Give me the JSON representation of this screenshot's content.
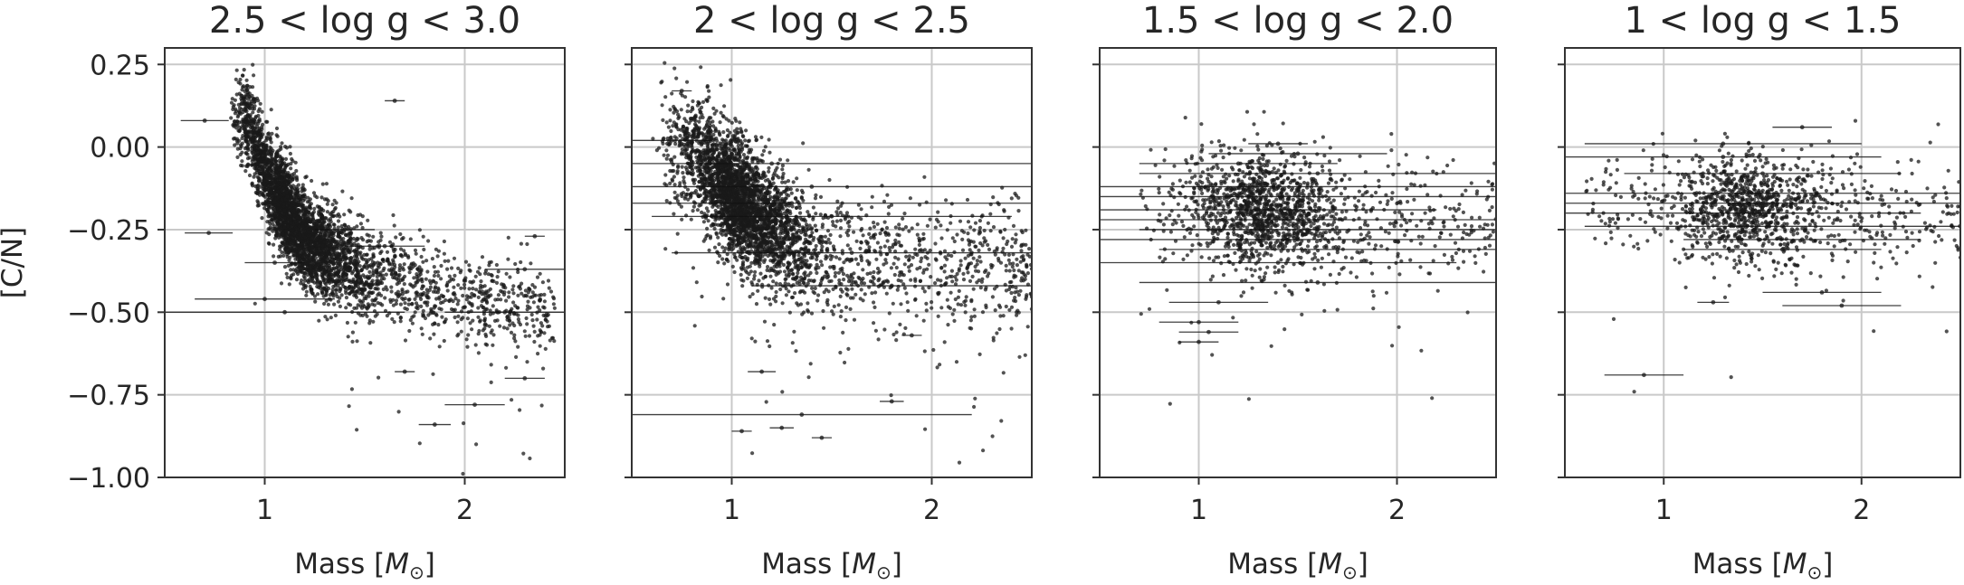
{
  "chart_data": [
    {
      "type": "scatter",
      "title": "2.5 < log g < 3.0",
      "xlabel_text": "Mass [",
      "xlabel_symbol": "M",
      "xlabel_sub": "⊙",
      "xlabel_close": "]",
      "ylabel": "[C/N]",
      "xlim": [
        0.5,
        2.5
      ],
      "ylim": [
        -1.0,
        0.3
      ],
      "xticks": [
        1,
        2
      ],
      "xtick_labels": [
        "1",
        "2"
      ],
      "yticks": [
        0.25,
        0.0,
        -0.25,
        -0.5,
        -0.75,
        -1.0
      ],
      "ytick_labels": [
        "0.25",
        "0.00",
        "−0.25",
        "−0.50",
        "−0.75",
        "−1.00"
      ],
      "show_ytick_labels": true,
      "grid": true,
      "density": {
        "model": "curve",
        "mass_min": 0.88,
        "mass_mode": 1.05,
        "mass_max": 2.45,
        "cn_at": [
          [
            0.9,
            0.1
          ],
          [
            1.0,
            -0.08
          ],
          [
            1.2,
            -0.28
          ],
          [
            1.5,
            -0.38
          ],
          [
            2.0,
            -0.46
          ],
          [
            2.5,
            -0.52
          ]
        ],
        "scatter": 0.07,
        "count": 3800,
        "seed": 11
      },
      "error_bars": [
        {
          "x": 1.65,
          "y": 0.14,
          "xerr": 0.05
        },
        {
          "x": 0.7,
          "y": 0.08,
          "xerr": 0.12
        },
        {
          "x": 0.72,
          "y": -0.26,
          "xerr": 0.12
        },
        {
          "x": 1.05,
          "y": -0.35,
          "xerr": 0.15
        },
        {
          "x": 1.0,
          "y": -0.46,
          "xerr": 0.35
        },
        {
          "x": 1.1,
          "y": -0.5,
          "xerr": 0.6
        },
        {
          "x": 2.2,
          "y": -0.5,
          "xerr": 0.3
        },
        {
          "x": 2.3,
          "y": -0.37,
          "xerr": 0.2
        },
        {
          "x": 1.7,
          "y": -0.68,
          "xerr": 0.05
        },
        {
          "x": 2.05,
          "y": -0.78,
          "xerr": 0.15
        },
        {
          "x": 1.85,
          "y": -0.84,
          "xerr": 0.08
        },
        {
          "x": 1.4,
          "y": -0.25,
          "xerr": 0.15
        },
        {
          "x": 1.6,
          "y": -0.3,
          "xerr": 0.2
        },
        {
          "x": 2.35,
          "y": -0.27,
          "xerr": 0.05
        },
        {
          "x": 2.3,
          "y": -0.7,
          "xerr": 0.1
        }
      ]
    },
    {
      "type": "scatter",
      "title": "2 < log g < 2.5",
      "xlabel_text": "Mass [",
      "xlabel_symbol": "M",
      "xlabel_sub": "⊙",
      "xlabel_close": "]",
      "xlim": [
        0.5,
        2.5
      ],
      "ylim": [
        -1.0,
        0.3
      ],
      "xticks": [
        1,
        2
      ],
      "xtick_labels": [
        "1",
        "2"
      ],
      "yticks": [
        0.25,
        0.0,
        -0.25,
        -0.5,
        -0.75,
        -1.0
      ],
      "show_ytick_labels": false,
      "grid": true,
      "density": {
        "model": "curve",
        "mass_min": 0.65,
        "mass_mode": 0.95,
        "mass_max": 2.5,
        "cn_at": [
          [
            0.7,
            0.02
          ],
          [
            0.9,
            -0.08
          ],
          [
            1.1,
            -0.2
          ],
          [
            1.4,
            -0.32
          ],
          [
            2.0,
            -0.35
          ],
          [
            2.5,
            -0.36
          ]
        ],
        "scatter": 0.09,
        "count": 3600,
        "seed": 23,
        "outliers": 140
      },
      "error_bars": [
        {
          "x": 0.75,
          "y": 0.17,
          "xerr": 0.05
        },
        {
          "x": 0.7,
          "y": 0.02,
          "xerr": 0.2
        },
        {
          "x": 1.2,
          "y": -0.05,
          "xerr": 1.3
        },
        {
          "x": 1.4,
          "y": -0.12,
          "xerr": 1.2
        },
        {
          "x": 1.3,
          "y": -0.17,
          "xerr": 1.3
        },
        {
          "x": 1.5,
          "y": -0.21,
          "xerr": 0.9
        },
        {
          "x": 1.6,
          "y": -0.32,
          "xerr": 0.9
        },
        {
          "x": 1.8,
          "y": -0.42,
          "xerr": 0.7
        },
        {
          "x": 1.35,
          "y": -0.81,
          "xerr": 0.85
        },
        {
          "x": 1.15,
          "y": -0.68,
          "xerr": 0.07
        },
        {
          "x": 1.25,
          "y": -0.85,
          "xerr": 0.06
        },
        {
          "x": 1.05,
          "y": -0.86,
          "xerr": 0.05
        },
        {
          "x": 1.8,
          "y": -0.77,
          "xerr": 0.06
        },
        {
          "x": 1.45,
          "y": -0.88,
          "xerr": 0.05
        },
        {
          "x": 1.9,
          "y": -0.57,
          "xerr": 0.05
        }
      ]
    },
    {
      "type": "scatter",
      "title": "1.5 < log g < 2.0",
      "xlabel_text": "Mass [",
      "xlabel_symbol": "M",
      "xlabel_sub": "⊙",
      "xlabel_close": "]",
      "xlim": [
        0.5,
        2.5
      ],
      "ylim": [
        -1.0,
        0.3
      ],
      "xticks": [
        1,
        2
      ],
      "xtick_labels": [
        "1",
        "2"
      ],
      "yticks": [
        0.25,
        0.0,
        -0.25,
        -0.5,
        -0.75,
        -1.0
      ],
      "show_ytick_labels": false,
      "grid": true,
      "density": {
        "model": "blob",
        "mass_min": 0.7,
        "mass_mode": 1.2,
        "mass_max": 2.5,
        "cn_center": -0.19,
        "cn_slope": -0.04,
        "scatter": 0.09,
        "count": 1500,
        "seed": 37,
        "outliers": 40
      },
      "error_bars": [
        {
          "x": 1.4,
          "y": 0.01,
          "xerr": 0.15
        },
        {
          "x": 1.5,
          "y": -0.02,
          "xerr": 0.45
        },
        {
          "x": 1.2,
          "y": -0.05,
          "xerr": 0.5
        },
        {
          "x": 1.6,
          "y": -0.08,
          "xerr": 0.9
        },
        {
          "x": 1.4,
          "y": -0.12,
          "xerr": 1.1
        },
        {
          "x": 1.5,
          "y": -0.15,
          "xerr": 1.0
        },
        {
          "x": 1.3,
          "y": -0.19,
          "xerr": 0.9
        },
        {
          "x": 1.5,
          "y": -0.22,
          "xerr": 1.0
        },
        {
          "x": 1.6,
          "y": -0.25,
          "xerr": 0.9
        },
        {
          "x": 1.5,
          "y": -0.28,
          "xerr": 1.0
        },
        {
          "x": 1.7,
          "y": -0.31,
          "xerr": 0.9
        },
        {
          "x": 1.4,
          "y": -0.35,
          "xerr": 0.9
        },
        {
          "x": 1.6,
          "y": -0.41,
          "xerr": 0.9
        },
        {
          "x": 1.1,
          "y": -0.47,
          "xerr": 0.25
        },
        {
          "x": 1.0,
          "y": -0.53,
          "xerr": 0.2
        },
        {
          "x": 1.05,
          "y": -0.56,
          "xerr": 0.15
        },
        {
          "x": 1.0,
          "y": -0.59,
          "xerr": 0.1
        }
      ]
    },
    {
      "type": "scatter",
      "title": "1 < log g < 1.5",
      "xlabel_text": "Mass [",
      "xlabel_symbol": "M",
      "xlabel_sub": "⊙",
      "xlabel_close": "]",
      "xlim": [
        0.5,
        2.5
      ],
      "ylim": [
        -1.0,
        0.3
      ],
      "xticks": [
        1,
        2
      ],
      "xtick_labels": [
        "1",
        "2"
      ],
      "yticks": [
        0.25,
        0.0,
        -0.25,
        -0.5,
        -0.75,
        -1.0
      ],
      "show_ytick_labels": false,
      "grid": true,
      "density": {
        "model": "blob",
        "mass_min": 0.6,
        "mass_mode": 1.3,
        "mass_max": 2.5,
        "cn_center": -0.18,
        "cn_slope": -0.02,
        "scatter": 0.08,
        "count": 1200,
        "seed": 53,
        "outliers": 30
      },
      "error_bars": [
        {
          "x": 1.7,
          "y": 0.06,
          "xerr": 0.15
        },
        {
          "x": 1.3,
          "y": 0.01,
          "xerr": 0.7
        },
        {
          "x": 1.3,
          "y": -0.03,
          "xerr": 0.8
        },
        {
          "x": 1.5,
          "y": -0.08,
          "xerr": 0.7
        },
        {
          "x": 1.4,
          "y": -0.14,
          "xerr": 1.1
        },
        {
          "x": 1.5,
          "y": -0.17,
          "xerr": 1.0
        },
        {
          "x": 1.4,
          "y": -0.2,
          "xerr": 0.9
        },
        {
          "x": 1.6,
          "y": -0.24,
          "xerr": 1.0
        },
        {
          "x": 1.7,
          "y": -0.28,
          "xerr": 0.6
        },
        {
          "x": 1.6,
          "y": -0.31,
          "xerr": 0.5
        },
        {
          "x": 1.25,
          "y": -0.47,
          "xerr": 0.08
        },
        {
          "x": 1.8,
          "y": -0.44,
          "xerr": 0.3
        },
        {
          "x": 1.9,
          "y": -0.48,
          "xerr": 0.3
        },
        {
          "x": 0.9,
          "y": -0.69,
          "xerr": 0.2
        }
      ]
    }
  ]
}
